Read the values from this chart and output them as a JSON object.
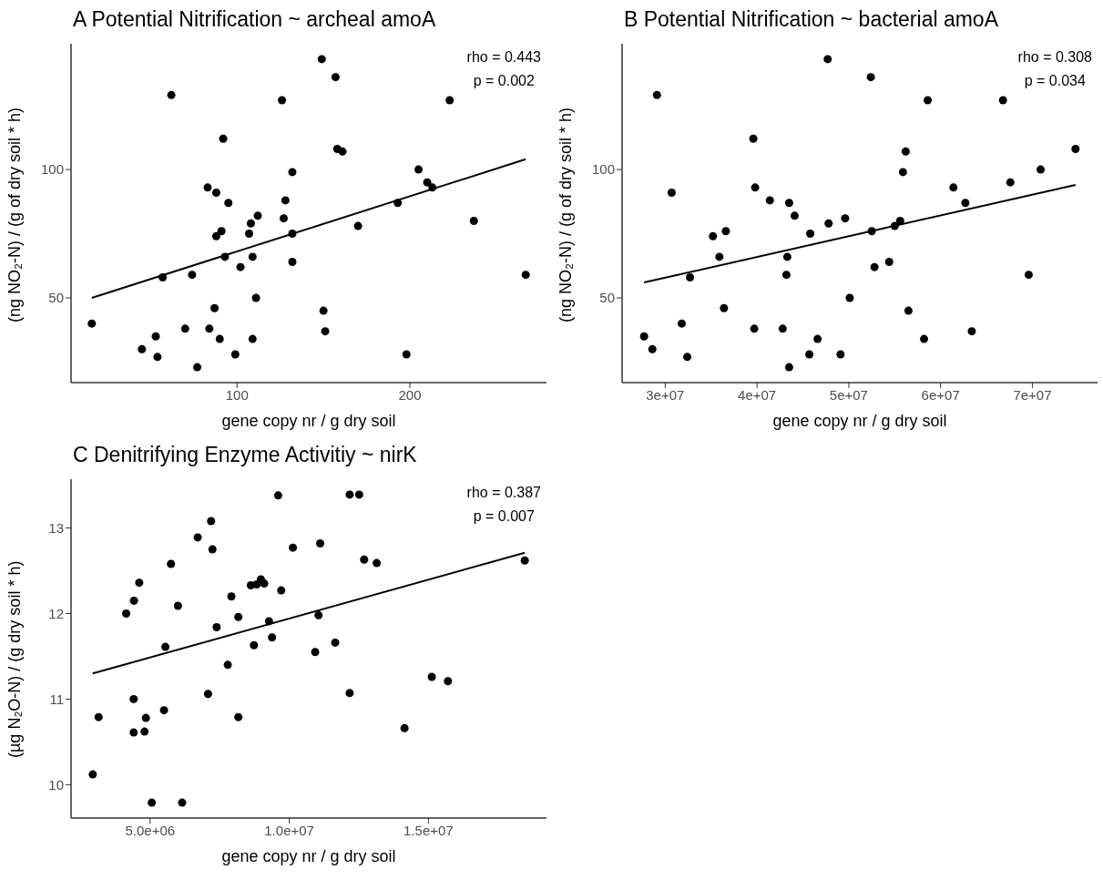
{
  "chart_data": [
    {
      "type": "scatter",
      "title": "A  Potential Nitrification ~ archeal amoA",
      "xlabel": "gene copy nr / g dry soil",
      "ylabel": "(ng NO₂-N) / (g of dry soil * h)",
      "annotations": [
        "rho =  0.443",
        "p = 0.002"
      ],
      "xlim": [
        4,
        279
      ],
      "ylim": [
        17,
        149
      ],
      "xticks": [
        100,
        200
      ],
      "yticks": [
        50,
        100
      ],
      "series": [
        {
          "marker": "circle",
          "color": "#000000",
          "x": [
            62,
            126,
            92,
            132,
            83,
            88,
            95,
            128,
            112,
            108,
            127,
            91,
            88,
            107,
            132,
            93,
            109,
            102,
            132,
            57,
            74,
            111,
            87,
            16,
            70,
            84,
            53,
            90,
            109,
            45,
            54,
            99,
            77,
            149,
            157,
            223,
            158,
            161,
            205,
            210,
            213,
            193,
            170,
            237,
            267,
            150,
            151,
            198
          ],
          "values": [
            129,
            127,
            112,
            99,
            93,
            91,
            87,
            88,
            82,
            79,
            81,
            76,
            74,
            75,
            75,
            66,
            66,
            62,
            64,
            58,
            59,
            50,
            46,
            40,
            38,
            38,
            35,
            34,
            34,
            30,
            27,
            28,
            23,
            143,
            136,
            127,
            108,
            107,
            100,
            95,
            93,
            87,
            78,
            80,
            59,
            45,
            37,
            28
          ]
        },
        {
          "type": "line",
          "marker": "none",
          "color": "#000000",
          "line_style": "solid",
          "x": [
            16,
            267
          ],
          "values": [
            50,
            104
          ]
        }
      ]
    },
    {
      "type": "scatter",
      "title": "B  Potential Nitrification ~ bacterial amoA",
      "xlabel": "gene copy nr / g dry soil",
      "ylabel": "(ng NO₂-N) / (g of dry soil * h)",
      "annotations": [
        "rho =  0.308",
        "p = 0.034"
      ],
      "xlim": [
        25300000.0,
        77100000.0
      ],
      "ylim": [
        17,
        149
      ],
      "xticks": [
        {
          "value": 30000000.0,
          "label": "3e+07"
        },
        {
          "value": 40000000.0,
          "label": "4e+07"
        },
        {
          "value": 50000000.0,
          "label": "5e+07"
        },
        {
          "value": 60000000.0,
          "label": "6e+07"
        },
        {
          "value": 70000000.0,
          "label": "7e+07"
        }
      ],
      "yticks": [
        50,
        100
      ],
      "series": [
        {
          "marker": "circle",
          "color": "#000000",
          "x": [
            47700000.0,
            29100000.0,
            39600000.0,
            30700000.0,
            39800000.0,
            41400000.0,
            43500000.0,
            44100000.0,
            47800000.0,
            49600000.0,
            35200000.0,
            36600000.0,
            45800000.0,
            35900000.0,
            43300000.0,
            32700000.0,
            43200000.0,
            50100000.0,
            36400000.0,
            31800000.0,
            39700000.0,
            42800000.0,
            27700000.0,
            46600000.0,
            28600000.0,
            32400000.0,
            45700000.0,
            49100000.0,
            43500000.0,
            52400000.0,
            58600000.0,
            66800000.0,
            56200000.0,
            74700000.0,
            55900000.0,
            70900000.0,
            67600000.0,
            61400000.0,
            62700000.0,
            55600000.0,
            55000000.0,
            52500000.0,
            52800000.0,
            54400000.0,
            69600000.0,
            56500000.0,
            58200000.0,
            63400000.0
          ],
          "values": [
            143,
            129,
            112,
            91,
            93,
            88,
            87,
            82,
            79,
            81,
            74,
            76,
            75,
            66,
            66,
            58,
            59,
            50,
            46,
            40,
            38,
            38,
            35,
            34,
            30,
            27,
            28,
            28,
            23,
            136,
            127,
            127,
            107,
            108,
            99,
            100,
            95,
            93,
            87,
            80,
            78,
            76,
            62,
            64,
            59,
            45,
            34,
            37
          ]
        },
        {
          "type": "line",
          "marker": "none",
          "color": "#000000",
          "line_style": "solid",
          "x": [
            27700000.0,
            74700000.0
          ],
          "values": [
            56,
            94
          ]
        }
      ]
    },
    {
      "type": "scatter",
      "title": "C  Denitrifying Enzyme Activitiy ~ nirK",
      "xlabel": "gene copy nr / g dry soil",
      "ylabel": "(µg N₂O-N) / (g dry soil * h)",
      "annotations": [
        "rho =  0.387",
        "p = 0.007"
      ],
      "xlim": [
        2160000.0,
        19240000.0
      ],
      "ylim": [
        9.61,
        13.57
      ],
      "xticks": [
        {
          "value": 5000000.0,
          "label": "5.0e+06"
        },
        {
          "value": 10000000.0,
          "label": "1.0e+07"
        },
        {
          "value": 15000000.0,
          "label": "1.5e+07"
        }
      ],
      "yticks": [
        10,
        11,
        12,
        13
      ],
      "series": [
        {
          "marker": "circle",
          "color": "#000000",
          "x": [
            9600000.0,
            7190000.0,
            6710000.0,
            7240000.0,
            10130000.0,
            5750000.0,
            4610000.0,
            8620000.0,
            8830000.0,
            8980000.0,
            9100000.0,
            9710000.0,
            4420000.0,
            7920000.0,
            6000000.0,
            4140000.0,
            8170000.0,
            9270000.0,
            7390000.0,
            9380000.0,
            8730000.0,
            5550000.0,
            7790000.0,
            7080000.0,
            4410000.0,
            5500000.0,
            3150000.0,
            4850000.0,
            8170000.0,
            4410000.0,
            4800000.0,
            2940000.0,
            5060000.0,
            6150000.0,
            12170000.0,
            12510000.0,
            11110000.0,
            12690000.0,
            13140000.0,
            18460000.0,
            11050000.0,
            11650000.0,
            10930000.0,
            15120000.0,
            15700000.0,
            12170000.0,
            14140000.0
          ],
          "values": [
            13.38,
            13.08,
            12.89,
            12.75,
            12.77,
            12.58,
            12.36,
            12.33,
            12.34,
            12.4,
            12.35,
            12.27,
            12.15,
            12.2,
            12.09,
            12.0,
            11.96,
            11.91,
            11.84,
            11.72,
            11.63,
            11.61,
            11.4,
            11.06,
            11.0,
            10.87,
            10.79,
            10.78,
            10.79,
            10.61,
            10.62,
            10.12,
            9.79,
            9.79,
            13.39,
            13.39,
            12.82,
            12.63,
            12.59,
            12.62,
            11.98,
            11.66,
            11.55,
            11.26,
            11.21,
            11.07,
            10.66
          ]
        },
        {
          "type": "line",
          "marker": "none",
          "color": "#000000",
          "line_style": "solid",
          "x": [
            2940000.0,
            18460000.0
          ],
          "values": [
            11.3,
            12.71
          ]
        }
      ]
    }
  ]
}
